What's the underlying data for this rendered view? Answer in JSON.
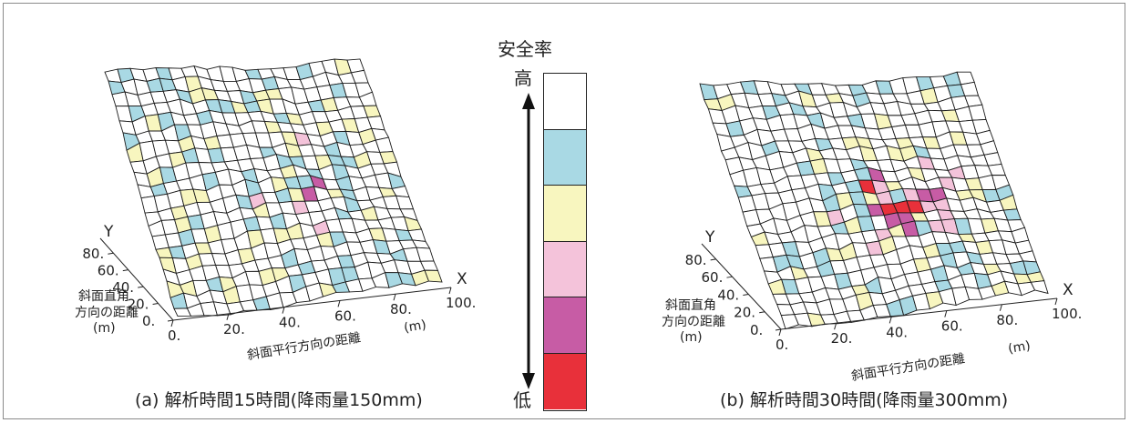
{
  "captions": {
    "a": "(a) 解析時間15時間(降雨量150mm)",
    "b": "(b) 解析時間30時間(降雨量300mm)"
  },
  "legend": {
    "title": "安全率",
    "high": "高",
    "low": "低",
    "colors": [
      "#ffffff",
      "#a9d9e4",
      "#f8f6bf",
      "#f4c3da",
      "#c75ca5",
      "#e8303a"
    ]
  },
  "axes": {
    "y_letter": "Y",
    "x_letter": "X",
    "y_ticks": [
      "0.",
      "20.",
      "40.",
      "60.",
      "80."
    ],
    "x_ticks": [
      "0.",
      "20.",
      "40.",
      "60.",
      "80.",
      "100."
    ],
    "y_label_line1": "斜面直角",
    "y_label_line2": "方向の距離",
    "y_label_unit": "(m)",
    "x_label": "斜面平行方向の距離",
    "x_label_unit": "(m)"
  }
}
